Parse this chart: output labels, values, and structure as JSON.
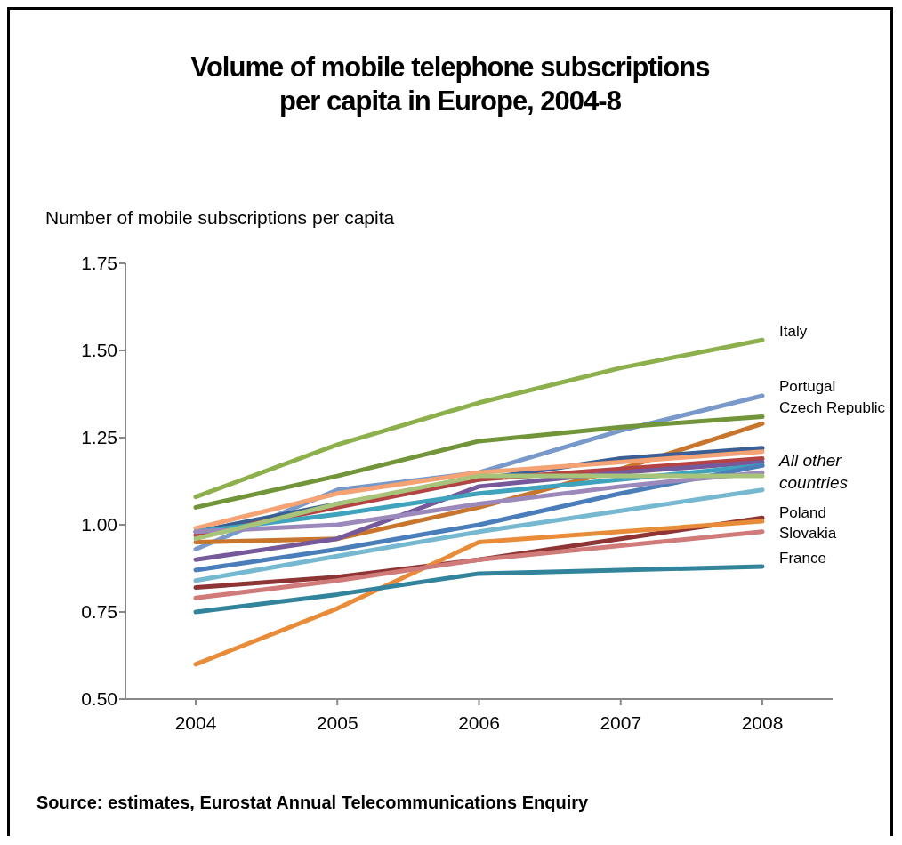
{
  "chart_data": {
    "type": "line",
    "title": "Volume of mobile telephone subscriptions per capita in Europe, 2004-8",
    "ylabel": "Number of mobile subscriptions per capita",
    "categories": [
      "2004",
      "2005",
      "2006",
      "2007",
      "2008"
    ],
    "ylim": [
      0.5,
      1.75
    ],
    "yticks": [
      {
        "value": 0.5,
        "label": "0.50"
      },
      {
        "value": 0.75,
        "label": "0.75"
      },
      {
        "value": 1,
        "label": "1.00"
      },
      {
        "value": 1.25,
        "label": "1.25"
      },
      {
        "value": 1.5,
        "label": "1.50"
      },
      {
        "value": 1.75,
        "label": "1.75"
      }
    ],
    "grid": false,
    "legend": false,
    "marker": "none",
    "line_style": "solid",
    "series": [
      {
        "name": "Italy",
        "color": "#8db04d",
        "values": [
          1.08,
          1.23,
          1.35,
          1.45,
          1.53
        ]
      },
      {
        "name": "Portugal",
        "color": "#7899c9",
        "values": [
          0.93,
          1.1,
          1.15,
          1.27,
          1.37
        ]
      },
      {
        "name": "Czech Republic",
        "color": "#72953a",
        "values": [
          1.05,
          1.14,
          1.24,
          1.28,
          1.31
        ]
      },
      {
        "color": "#c8752e",
        "values": [
          0.95,
          0.96,
          1.05,
          1.16,
          1.29
        ]
      },
      {
        "color": "#3b5f94",
        "values": [
          0.98,
          1.06,
          1.13,
          1.19,
          1.22
        ]
      },
      {
        "color": "#f5a274",
        "values": [
          0.99,
          1.09,
          1.15,
          1.18,
          1.21
        ]
      },
      {
        "color": "#b44444",
        "values": [
          0.97,
          1.05,
          1.13,
          1.16,
          1.19
        ]
      },
      {
        "color": "#76599a",
        "values": [
          0.9,
          0.96,
          1.11,
          1.15,
          1.18
        ]
      },
      {
        "color": "#3fa3bd",
        "values": [
          0.98,
          1.03,
          1.09,
          1.13,
          1.17
        ]
      },
      {
        "color": "#4a7ebb",
        "values": [
          0.87,
          0.93,
          1.0,
          1.09,
          1.17
        ]
      },
      {
        "color": "#9b89bb",
        "values": [
          0.98,
          1.0,
          1.06,
          1.11,
          1.15
        ]
      },
      {
        "color": "#a7c47a",
        "values": [
          0.96,
          1.06,
          1.14,
          1.14,
          1.14
        ]
      },
      {
        "color": "#75b8d0",
        "values": [
          0.84,
          0.91,
          0.98,
          1.04,
          1.1
        ]
      },
      {
        "color": "#8e3434",
        "values": [
          0.82,
          0.85,
          0.9,
          0.96,
          1.02
        ]
      },
      {
        "name": "Poland",
        "color": "#e98c3a",
        "values": [
          0.6,
          0.76,
          0.95,
          0.98,
          1.01
        ]
      },
      {
        "name": "Slovakia",
        "color": "#d07a7a",
        "values": [
          0.79,
          0.84,
          0.9,
          0.94,
          0.98
        ]
      },
      {
        "name": "France",
        "color": "#31849b",
        "values": [
          0.75,
          0.8,
          0.86,
          0.87,
          0.88
        ]
      }
    ],
    "annotations": [
      {
        "text": "All other countries",
        "x": "2008",
        "y": 1.15
      },
      "Source: estimates, Eurostat Annual Telecommunications Enquiry"
    ]
  }
}
